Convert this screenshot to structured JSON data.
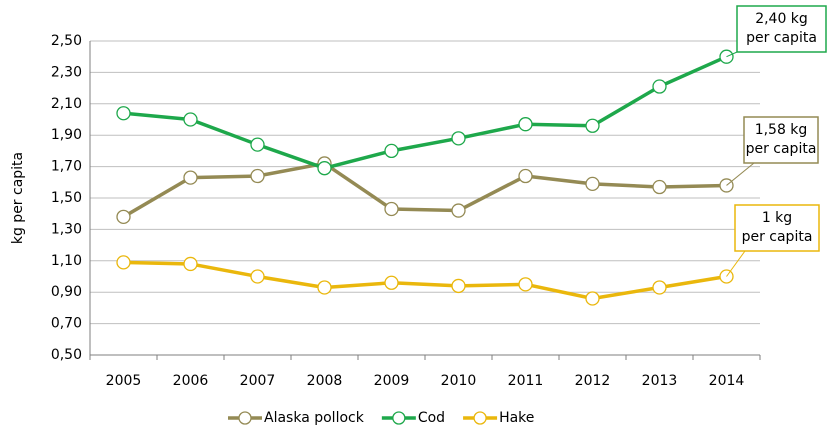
{
  "chart_data": {
    "type": "line",
    "y_label": "kg per capita",
    "categories": [
      "2005",
      "2006",
      "2007",
      "2008",
      "2009",
      "2010",
      "2011",
      "2012",
      "2013",
      "2014"
    ],
    "series": [
      {
        "name": "Alaska pollock",
        "color": "#948a54",
        "values": [
          1.38,
          1.63,
          1.64,
          1.72,
          1.43,
          1.42,
          1.64,
          1.59,
          1.57,
          1.58
        ]
      },
      {
        "name": "Cod",
        "color": "#1ea84b",
        "values": [
          2.04,
          2.0,
          1.84,
          1.69,
          1.8,
          1.88,
          1.97,
          1.96,
          2.21,
          2.4
        ]
      },
      {
        "name": "Hake",
        "color": "#eab70c",
        "values": [
          1.09,
          1.08,
          1.0,
          0.93,
          0.96,
          0.94,
          0.95,
          0.86,
          0.93,
          1.0
        ]
      }
    ],
    "ylim": [
      0.5,
      2.5
    ],
    "yticks": [
      {
        "value": 0.5,
        "label": "0,50"
      },
      {
        "value": 0.7,
        "label": "0,70"
      },
      {
        "value": 0.9,
        "label": "0,90"
      },
      {
        "value": 1.1,
        "label": "1,10"
      },
      {
        "value": 1.3,
        "label": "1,30"
      },
      {
        "value": 1.5,
        "label": "1,50"
      },
      {
        "value": 1.7,
        "label": "1,70"
      },
      {
        "value": 1.9,
        "label": "1,90"
      },
      {
        "value": 2.1,
        "label": "2,10"
      },
      {
        "value": 2.3,
        "label": "2,30"
      },
      {
        "value": 2.5,
        "label": "2,50"
      }
    ],
    "grid": true,
    "legend": "bottom",
    "annotations": [
      {
        "lines": [
          "2,40 kg",
          "per capita"
        ],
        "color": "#1ea84b"
      },
      {
        "lines": [
          "1,58 kg",
          "per capita"
        ],
        "color": "#948a54"
      },
      {
        "lines": [
          "1 kg",
          "per capita"
        ],
        "color": "#eab70c"
      }
    ]
  }
}
